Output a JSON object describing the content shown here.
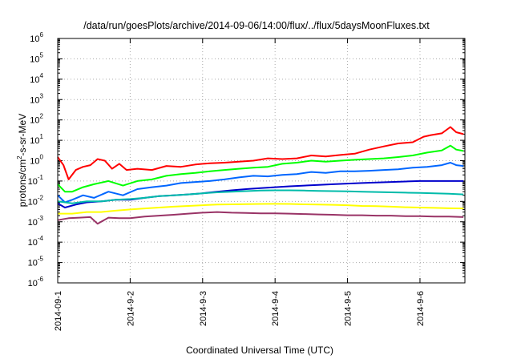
{
  "chart_data": {
    "type": "line",
    "title": "/data/run/goesPlots/archive/2014-09-06/14:00/flux/../flux/5daysMoonFluxes.txt",
    "xlabel": "Coordinated Universal Time (UTC)",
    "ylabel": {
      "base": "protons/cm",
      "sup": "2",
      "rest": "-s-sr-MeV"
    },
    "x_unit": "days",
    "xlim": [
      0,
      5.62
    ],
    "x_ticks": [
      {
        "x": 0,
        "label": "2014-09-1"
      },
      {
        "x": 1,
        "label": "2014-9-2"
      },
      {
        "x": 2,
        "label": "2014-9-3"
      },
      {
        "x": 3,
        "label": "2014-9-4"
      },
      {
        "x": 4,
        "label": "2014-9-5"
      },
      {
        "x": 5,
        "label": "2014-9-6"
      }
    ],
    "y_scale": "log",
    "ylim_exp": [
      -6,
      6
    ],
    "y_ticks": [
      {
        "base": "10",
        "exp": "6"
      },
      {
        "base": "10",
        "exp": "5"
      },
      {
        "base": "10",
        "exp": "4"
      },
      {
        "base": "10",
        "exp": "3"
      },
      {
        "base": "10",
        "exp": "2"
      },
      {
        "base": "10",
        "exp": "1"
      },
      {
        "base": "10",
        "exp": "0"
      },
      {
        "base": "10",
        "exp": "-1"
      },
      {
        "base": "10",
        "exp": "-2"
      },
      {
        "base": "10",
        "exp": "-3"
      },
      {
        "base": "10",
        "exp": "-4"
      },
      {
        "base": "10",
        "exp": "-5"
      },
      {
        "base": "10",
        "exp": "-6"
      }
    ],
    "grid": true,
    "series": [
      {
        "color": "#ff0000",
        "x": [
          0,
          0.08,
          0.15,
          0.25,
          0.35,
          0.45,
          0.55,
          0.65,
          0.75,
          0.85,
          0.95,
          1.1,
          1.3,
          1.5,
          1.7,
          1.9,
          2.1,
          2.3,
          2.5,
          2.7,
          2.9,
          3.1,
          3.3,
          3.5,
          3.7,
          3.9,
          4.1,
          4.3,
          4.5,
          4.7,
          4.9,
          5.05,
          5.15,
          5.3,
          5.42,
          5.5,
          5.6
        ],
        "y": [
          1.5,
          0.6,
          0.12,
          0.35,
          0.5,
          0.6,
          1.2,
          1.0,
          0.4,
          0.7,
          0.35,
          0.4,
          0.35,
          0.55,
          0.5,
          0.65,
          0.75,
          0.8,
          0.9,
          1.0,
          1.3,
          1.2,
          1.3,
          1.8,
          1.6,
          1.9,
          2.2,
          3.5,
          5,
          7,
          8,
          15,
          18,
          22,
          45,
          25,
          20
        ]
      },
      {
        "color": "#00ff00",
        "x": [
          0,
          0.1,
          0.2,
          0.35,
          0.5,
          0.7,
          0.9,
          1.1,
          1.3,
          1.5,
          1.7,
          1.9,
          2.1,
          2.3,
          2.5,
          2.7,
          2.9,
          3.1,
          3.3,
          3.5,
          3.7,
          3.9,
          4.1,
          4.3,
          4.5,
          4.7,
          4.9,
          5.1,
          5.3,
          5.42,
          5.5,
          5.6
        ],
        "y": [
          0.07,
          0.03,
          0.03,
          0.05,
          0.07,
          0.1,
          0.06,
          0.1,
          0.12,
          0.18,
          0.22,
          0.25,
          0.3,
          0.35,
          0.4,
          0.45,
          0.5,
          0.7,
          0.8,
          1.0,
          0.9,
          1.0,
          1.1,
          1.2,
          1.3,
          1.5,
          1.8,
          2.5,
          3.2,
          5.5,
          3.5,
          3.0
        ]
      },
      {
        "color": "#0066ff",
        "x": [
          0,
          0.1,
          0.2,
          0.35,
          0.5,
          0.7,
          0.9,
          1.1,
          1.3,
          1.5,
          1.7,
          1.9,
          2.1,
          2.3,
          2.5,
          2.7,
          2.9,
          3.1,
          3.3,
          3.5,
          3.7,
          3.9,
          4.1,
          4.3,
          4.5,
          4.7,
          4.9,
          5.1,
          5.3,
          5.42,
          5.5,
          5.6
        ],
        "y": [
          0.02,
          0.009,
          0.012,
          0.02,
          0.015,
          0.03,
          0.02,
          0.04,
          0.05,
          0.06,
          0.08,
          0.09,
          0.1,
          0.12,
          0.15,
          0.18,
          0.17,
          0.2,
          0.22,
          0.28,
          0.25,
          0.3,
          0.3,
          0.32,
          0.35,
          0.38,
          0.45,
          0.5,
          0.6,
          0.8,
          0.6,
          0.55
        ]
      },
      {
        "color": "#0000cc",
        "x": [
          0,
          0.1,
          0.25,
          0.4,
          0.6,
          0.8,
          1.0,
          1.2,
          1.4,
          1.6,
          1.8,
          2.0,
          2.2,
          2.4,
          2.6,
          2.8,
          3.0,
          3.2,
          3.4,
          3.6,
          3.8,
          4.0,
          4.2,
          4.4,
          4.6,
          4.8,
          5.0,
          5.2,
          5.4,
          5.6
        ],
        "y": [
          0.008,
          0.005,
          0.007,
          0.009,
          0.01,
          0.012,
          0.012,
          0.015,
          0.018,
          0.02,
          0.022,
          0.025,
          0.03,
          0.035,
          0.04,
          0.045,
          0.05,
          0.055,
          0.06,
          0.065,
          0.07,
          0.075,
          0.08,
          0.085,
          0.09,
          0.095,
          0.1,
          0.1,
          0.1,
          0.1
        ]
      },
      {
        "color": "#00bbaa",
        "x": [
          0,
          0.2,
          0.4,
          0.6,
          0.8,
          1.0,
          1.2,
          1.4,
          1.6,
          1.8,
          2.0,
          2.2,
          2.4,
          2.6,
          2.8,
          3.0,
          3.2,
          3.4,
          3.6,
          3.8,
          4.0,
          4.2,
          4.4,
          4.6,
          4.8,
          5.0,
          5.2,
          5.4,
          5.6
        ],
        "y": [
          0.01,
          0.008,
          0.01,
          0.01,
          0.012,
          0.013,
          0.015,
          0.018,
          0.02,
          0.022,
          0.025,
          0.028,
          0.03,
          0.032,
          0.034,
          0.035,
          0.035,
          0.034,
          0.033,
          0.032,
          0.031,
          0.03,
          0.029,
          0.028,
          0.027,
          0.026,
          0.025,
          0.024,
          0.022
        ]
      },
      {
        "color": "#ffff00",
        "x": [
          0,
          0.2,
          0.4,
          0.6,
          0.8,
          1.0,
          1.2,
          1.4,
          1.6,
          1.8,
          2.0,
          2.2,
          2.4,
          2.6,
          2.8,
          3.0,
          3.2,
          3.4,
          3.6,
          3.8,
          4.0,
          4.2,
          4.4,
          4.6,
          4.8,
          5.0,
          5.2,
          5.4,
          5.6
        ],
        "y": [
          0.0025,
          0.0025,
          0.003,
          0.003,
          0.0035,
          0.004,
          0.0045,
          0.005,
          0.0055,
          0.006,
          0.0065,
          0.007,
          0.0072,
          0.0074,
          0.0075,
          0.0076,
          0.0075,
          0.0072,
          0.007,
          0.0068,
          0.0065,
          0.006,
          0.0058,
          0.0055,
          0.0052,
          0.005,
          0.0048,
          0.0046,
          0.0045
        ]
      },
      {
        "color": "#993366",
        "x": [
          0,
          0.15,
          0.3,
          0.45,
          0.55,
          0.7,
          0.85,
          1.0,
          1.2,
          1.4,
          1.6,
          1.8,
          2.0,
          2.2,
          2.4,
          2.6,
          2.8,
          3.0,
          3.2,
          3.4,
          3.6,
          3.8,
          4.0,
          4.2,
          4.4,
          4.6,
          4.8,
          5.0,
          5.2,
          5.4,
          5.6
        ],
        "y": [
          0.0012,
          0.0015,
          0.0016,
          0.0017,
          0.0008,
          0.0016,
          0.0015,
          0.0015,
          0.0018,
          0.002,
          0.0022,
          0.0025,
          0.0028,
          0.003,
          0.0028,
          0.0027,
          0.0026,
          0.0026,
          0.0025,
          0.0024,
          0.0023,
          0.0022,
          0.0021,
          0.0021,
          0.002,
          0.002,
          0.0019,
          0.0019,
          0.0018,
          0.0018,
          0.0017
        ]
      }
    ]
  }
}
